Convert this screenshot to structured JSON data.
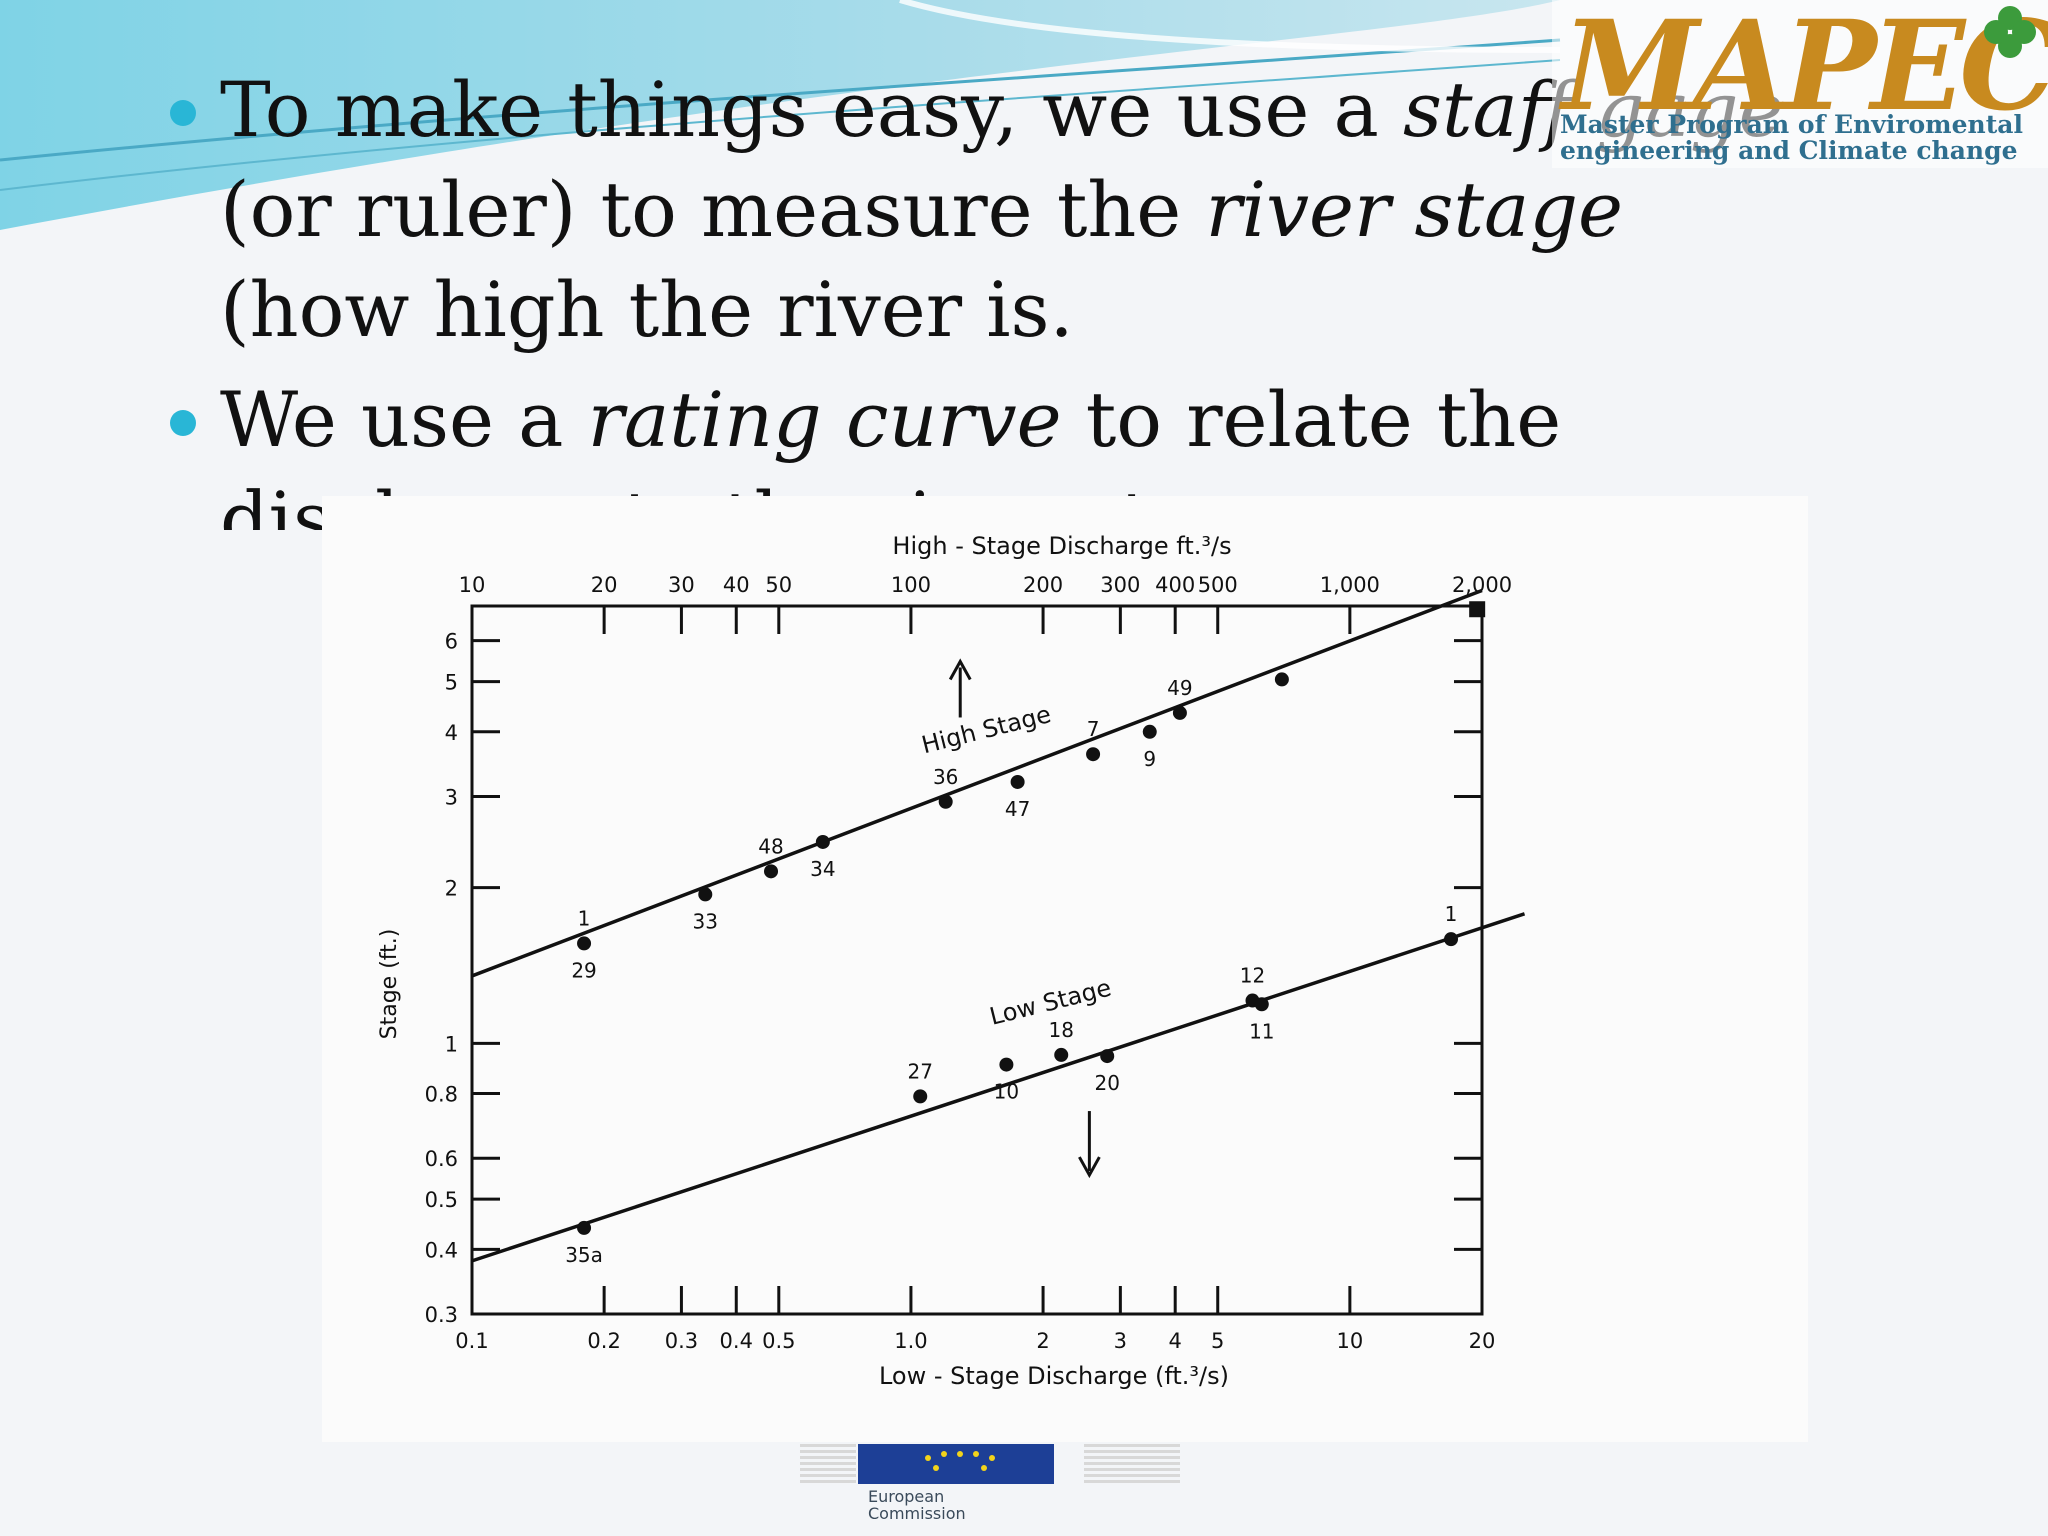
{
  "slide": {
    "bullets": [
      {
        "parts": [
          "To make things easy, we use a ",
          "staff gage",
          " (or ruler) to measure the ",
          "river stage",
          " (how high the river is."
        ]
      },
      {
        "parts": [
          "We use a ",
          "rating curve",
          " to relate the discharge to the river stage."
        ]
      }
    ]
  },
  "logo": {
    "mark": "MAPEC",
    "line1": "Master Program of Enviromental",
    "line2": "engineering and Climate change"
  },
  "footer_logo": {
    "line1": "European",
    "line2": "Commission"
  },
  "chart_data": {
    "type": "scatter",
    "scale": "log-log",
    "top_axis_title": "High - Stage Discharge ft.³/s",
    "bottom_axis_title": "Low - Stage Discharge (ft.³/s)",
    "ylabel": "Stage (ft.)",
    "top_x_ticks": [
      {
        "v": 10,
        "label": "10"
      },
      {
        "v": 20,
        "label": "20"
      },
      {
        "v": 30,
        "label": "30"
      },
      {
        "v": 40,
        "label": "40"
      },
      {
        "v": 50,
        "label": "50"
      },
      {
        "v": 100,
        "label": "100"
      },
      {
        "v": 200,
        "label": "200"
      },
      {
        "v": 300,
        "label": "300"
      },
      {
        "v": 400,
        "label": "400"
      },
      {
        "v": 500,
        "label": "500"
      },
      {
        "v": 1000,
        "label": "1,000"
      },
      {
        "v": 2000,
        "label": "2,000"
      }
    ],
    "bottom_x_ticks": [
      {
        "v": 0.1,
        "label": "0.1"
      },
      {
        "v": 0.2,
        "label": "0.2"
      },
      {
        "v": 0.3,
        "label": "0.3"
      },
      {
        "v": 0.4,
        "label": "0.4"
      },
      {
        "v": 0.5,
        "label": "0.5"
      },
      {
        "v": 1,
        "label": "1.0"
      },
      {
        "v": 2,
        "label": "2"
      },
      {
        "v": 3,
        "label": "3"
      },
      {
        "v": 4,
        "label": "4"
      },
      {
        "v": 5,
        "label": "5"
      },
      {
        "v": 10,
        "label": "10"
      },
      {
        "v": 20,
        "label": "20"
      }
    ],
    "y_ticks": [
      {
        "v": 0.3,
        "label": "0.3"
      },
      {
        "v": 0.4,
        "label": "0.4"
      },
      {
        "v": 0.5,
        "label": "0.5"
      },
      {
        "v": 0.6,
        "label": "0.6"
      },
      {
        "v": 0.8,
        "label": "0.8"
      },
      {
        "v": 1,
        "label": "1"
      },
      {
        "v": 2,
        "label": "2"
      },
      {
        "v": 3,
        "label": "3"
      },
      {
        "v": 4,
        "label": "4"
      },
      {
        "v": 5,
        "label": "5"
      },
      {
        "v": 6,
        "label": "6"
      }
    ],
    "xlim_top": [
      10,
      2000
    ],
    "xlim_bottom": [
      0.1,
      20
    ],
    "ylim": [
      0.3,
      7
    ],
    "series": [
      {
        "name": "High Stage",
        "axis": "top",
        "line": {
          "from": [
            10,
            1.35
          ],
          "to": [
            2000,
            7.5
          ]
        },
        "points": [
          {
            "x": 18.0,
            "y": 1.56,
            "label": "1",
            "label2": "29"
          },
          {
            "x": 34,
            "y": 1.94,
            "label": "33"
          },
          {
            "x": 48,
            "y": 2.15,
            "label": "48"
          },
          {
            "x": 63,
            "y": 2.45,
            "label": "34"
          },
          {
            "x": 120,
            "y": 2.93,
            "label": "36"
          },
          {
            "x": 175,
            "y": 3.2,
            "label": "47"
          },
          {
            "x": 260,
            "y": 3.62,
            "label": "7"
          },
          {
            "x": 350,
            "y": 4.0,
            "label": "9"
          },
          {
            "x": 410,
            "y": 4.35,
            "label": "49"
          },
          {
            "x": 700,
            "y": 5.05,
            "label": ""
          },
          {
            "x": 1950,
            "y": 6.9,
            "label": "",
            "marker": "square"
          }
        ]
      },
      {
        "name": "Low Stage",
        "axis": "bottom",
        "line": {
          "from": [
            0.1,
            0.38
          ],
          "to": [
            25,
            1.78
          ]
        },
        "points": [
          {
            "x": 0.18,
            "y": 0.44,
            "label": "35a"
          },
          {
            "x": 1.05,
            "y": 0.79,
            "label": "27"
          },
          {
            "x": 1.65,
            "y": 0.91,
            "label": "10"
          },
          {
            "x": 2.2,
            "y": 0.95,
            "label": "18"
          },
          {
            "x": 2.8,
            "y": 0.945,
            "label": "20"
          },
          {
            "x": 6.0,
            "y": 1.21,
            "label": "12"
          },
          {
            "x": 6.3,
            "y": 1.19,
            "label": "11"
          },
          {
            "x": 17,
            "y": 1.59,
            "label": "1"
          }
        ]
      }
    ],
    "annotations": [
      {
        "text": "High Stage",
        "arrow": "up"
      },
      {
        "text": "Low Stage",
        "arrow": "down"
      }
    ],
    "colors": {
      "ink": "#111111",
      "bullet": "#29b6d6"
    }
  }
}
